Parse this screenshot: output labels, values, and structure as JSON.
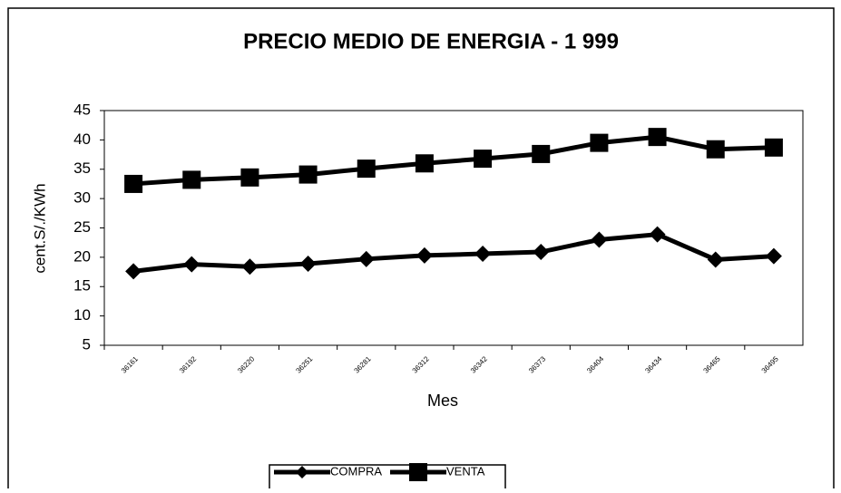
{
  "chart_data": {
    "type": "line",
    "title": "PRECIO MEDIO DE ENERGIA - 1 999",
    "x_label": "Mes",
    "y_label": "cent.S/./KWh",
    "categories": [
      "36161",
      "36192",
      "36220",
      "36251",
      "36281",
      "36312",
      "36342",
      "36373",
      "36404",
      "36434",
      "36465",
      "36495"
    ],
    "series": [
      {
        "name": "COMPRA",
        "color": "#000000",
        "marker": "diamond",
        "values": [
          17.6,
          18.8,
          18.4,
          18.9,
          19.7,
          20.3,
          20.6,
          20.9,
          23.0,
          23.9,
          19.6,
          20.2
        ]
      },
      {
        "name": "VENTA",
        "color": "#000000",
        "marker": "square",
        "values": [
          32.5,
          33.2,
          33.6,
          34.1,
          35.1,
          36.0,
          36.8,
          37.6,
          39.5,
          40.5,
          38.4,
          38.7
        ]
      }
    ],
    "ylim": [
      5,
      45
    ],
    "yticks": [
      5,
      10,
      15,
      20,
      25,
      30,
      35,
      40,
      45
    ],
    "legend": "bottom"
  }
}
